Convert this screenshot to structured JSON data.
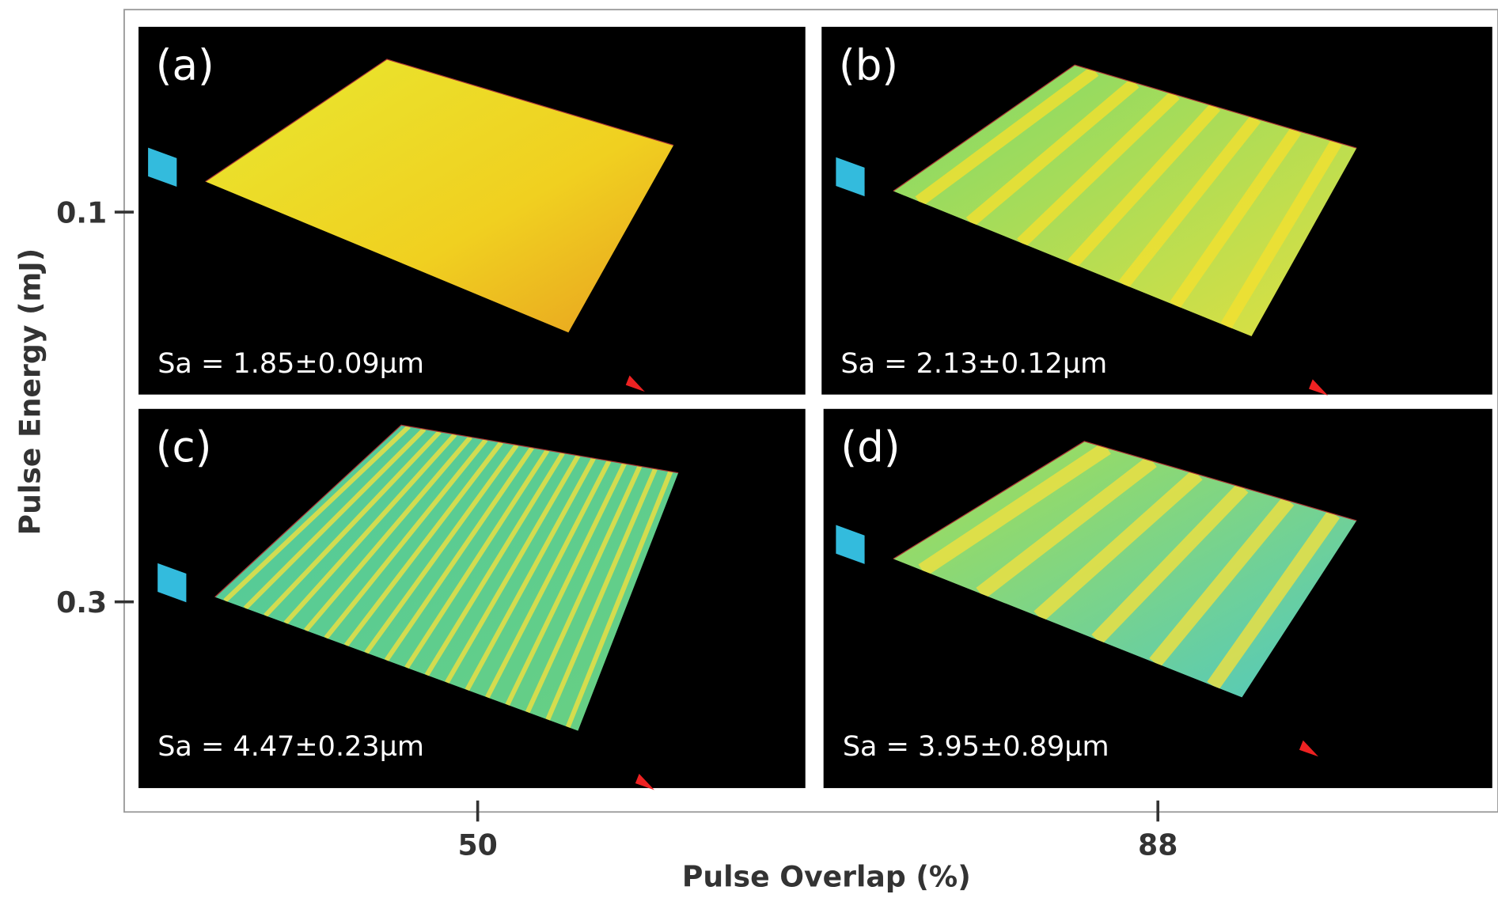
{
  "axes": {
    "x_label": "Pulse Overlap (%)",
    "x_ticks": [
      "50",
      "88"
    ],
    "y_label": "Pulse Energy (mJ)",
    "y_ticks": [
      "0.1",
      "0.3"
    ]
  },
  "panels": [
    {
      "label": "(a)",
      "roughness": "Sa = 1.85±0.09µm"
    },
    {
      "label": "(b)",
      "roughness": "Sa = 2.13±0.12µm"
    },
    {
      "label": "(c)",
      "roughness": "Sa = 4.47±0.23µm"
    },
    {
      "label": "(d)",
      "roughness": "Sa = 3.95±0.89µm"
    }
  ]
}
